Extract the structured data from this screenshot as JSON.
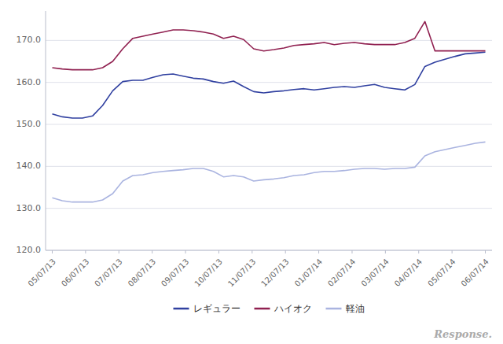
{
  "chart_data": {
    "type": "line",
    "x": [
      0,
      0.3023,
      0.6047,
      0.907,
      1.2093,
      1.5116,
      1.814,
      2.1163,
      2.4186,
      2.7209,
      3.0233,
      3.3256,
      3.6279,
      3.9302,
      4.2326,
      4.5349,
      4.8372,
      5.1395,
      5.4419,
      5.7442,
      6.0465,
      6.3488,
      6.6512,
      6.9535,
      7.2558,
      7.5581,
      7.8605,
      8.1628,
      8.4651,
      8.7674,
      9.0698,
      9.3721,
      9.6744,
      9.9767,
      10.2791,
      10.5814,
      10.8837,
      11.186,
      11.4884,
      11.7907,
      12.093,
      12.3953,
      12.6977,
      13
    ],
    "series": [
      {
        "name": "レギュラー",
        "color": "#3040a0",
        "values": [
          152.5,
          151.8,
          151.5,
          151.5,
          152.0,
          154.5,
          158.0,
          160.2,
          160.5,
          160.5,
          161.2,
          161.8,
          162.0,
          161.5,
          161.0,
          160.8,
          160.2,
          159.8,
          160.3,
          159.0,
          157.8,
          157.5,
          157.8,
          158.0,
          158.3,
          158.5,
          158.2,
          158.5,
          158.8,
          159.0,
          158.8,
          159.2,
          159.5,
          158.8,
          158.5,
          158.2,
          159.5,
          163.8,
          164.8,
          165.5,
          166.2,
          166.8,
          167.0,
          167.2
        ]
      },
      {
        "name": "ハイオク",
        "color": "#902050",
        "values": [
          163.5,
          163.2,
          163.0,
          163.0,
          163.0,
          163.5,
          165.0,
          168.0,
          170.5,
          171.0,
          171.5,
          172.0,
          172.5,
          172.5,
          172.3,
          172.0,
          171.5,
          170.5,
          171.0,
          170.2,
          168.0,
          167.5,
          167.8,
          168.2,
          168.8,
          169.0,
          169.2,
          169.5,
          169.0,
          169.3,
          169.5,
          169.2,
          169.0,
          169.0,
          169.0,
          169.5,
          170.5,
          174.5,
          167.5,
          167.5,
          167.5,
          167.5,
          167.5,
          167.5
        ]
      },
      {
        "name": "軽油",
        "color": "#aab4e0",
        "values": [
          132.5,
          131.8,
          131.5,
          131.5,
          131.5,
          132.0,
          133.5,
          136.5,
          137.8,
          138.0,
          138.5,
          138.8,
          139.0,
          139.2,
          139.5,
          139.5,
          138.8,
          137.5,
          137.8,
          137.5,
          136.5,
          136.8,
          137.0,
          137.3,
          137.8,
          138.0,
          138.5,
          138.8,
          138.8,
          139.0,
          139.3,
          139.5,
          139.5,
          139.3,
          139.5,
          139.5,
          139.8,
          142.5,
          143.5,
          144.0,
          144.5,
          145.0,
          145.5,
          145.8
        ]
      }
    ],
    "xlim": [
      -0.2,
      13.2
    ],
    "xticks": [
      {
        "value": 0,
        "label": "05/07/13"
      },
      {
        "value": 1,
        "label": "06/07/13"
      },
      {
        "value": 2,
        "label": "07/07/13"
      },
      {
        "value": 3,
        "label": "08/07/13"
      },
      {
        "value": 4,
        "label": "09/07/13"
      },
      {
        "value": 5,
        "label": "10/07/13"
      },
      {
        "value": 6,
        "label": "11/07/13"
      },
      {
        "value": 7,
        "label": "12/07/13"
      },
      {
        "value": 8,
        "label": "01/07/14"
      },
      {
        "value": 9,
        "label": "02/07/14"
      },
      {
        "value": 10,
        "label": "03/07/14"
      },
      {
        "value": 11,
        "label": "04/07/14"
      },
      {
        "value": 12,
        "label": "05/07/14"
      },
      {
        "value": 13,
        "label": "06/07/14"
      }
    ],
    "ylim": [
      120.0,
      177.0
    ],
    "yticks": [
      {
        "value": 120.0,
        "label": "120.0"
      },
      {
        "value": 130.0,
        "label": "130.0"
      },
      {
        "value": 140.0,
        "label": "140.0"
      },
      {
        "value": 150.0,
        "label": "150.0"
      },
      {
        "value": 160.0,
        "label": "160.0"
      },
      {
        "value": 170.0,
        "label": "170.0"
      }
    ],
    "grid": true,
    "legend": "bottom",
    "annotations": [
      "Response."
    ]
  }
}
